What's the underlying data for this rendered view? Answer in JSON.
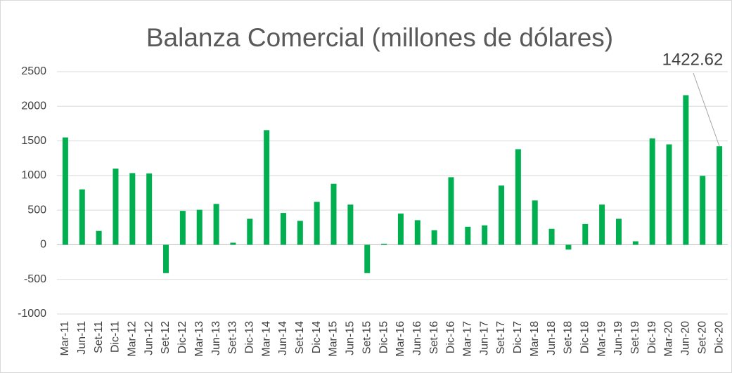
{
  "chart_data": {
    "type": "bar",
    "title": "Balanza Comercial (millones de dólares)",
    "categories": [
      "Mar-11",
      "Jun-11",
      "Set-11",
      "Dic-11",
      "Mar-12",
      "Jun-12",
      "Set-12",
      "Dic-12",
      "Mar-13",
      "Jun-13",
      "Set-13",
      "Dic-13",
      "Mar-14",
      "Jun-14",
      "Set-14",
      "Dic-14",
      "Mar-15",
      "Jun-15",
      "Set-15",
      "Dic-15",
      "Mar-16",
      "Jun-16",
      "Set-16",
      "Dic-16",
      "Mar-17",
      "Jun-17",
      "Set-17",
      "Dic-17",
      "Mar-18",
      "Jun-18",
      "Set-18",
      "Dic-18",
      "Mar-19",
      "Jun-19",
      "Set-19",
      "Dic-19",
      "Mar-20",
      "Jun-20",
      "Set-20",
      "Dic-20"
    ],
    "values": [
      1550,
      800,
      200,
      1100,
      1035,
      1030,
      -410,
      490,
      505,
      590,
      30,
      375,
      1655,
      460,
      345,
      620,
      880,
      580,
      -410,
      15,
      450,
      355,
      210,
      975,
      260,
      280,
      855,
      1380,
      640,
      230,
      -70,
      300,
      580,
      375,
      50,
      1535,
      1450,
      2160,
      995,
      1422.62
    ],
    "color": "#00b050",
    "ylim": [
      -1000,
      2500
    ],
    "yticks": [
      -1000,
      -500,
      0,
      500,
      1000,
      1500,
      2000,
      2500
    ],
    "grid": true
  }
}
